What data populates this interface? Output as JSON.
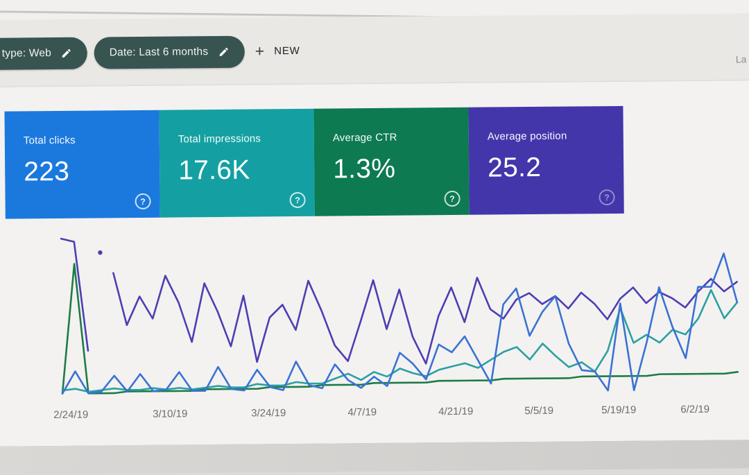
{
  "header": {
    "chips": [
      {
        "label": "type: Web",
        "icon": "pencil-icon"
      },
      {
        "label": "Date: Last 6 months",
        "icon": "pencil-icon"
      }
    ],
    "new_button": {
      "plus": "+",
      "label": "NEW"
    },
    "right_partial_text": "La"
  },
  "metric_cards": [
    {
      "label": "Total clicks",
      "value": "223",
      "color": "#1b79de",
      "help": "?"
    },
    {
      "label": "Total impressions",
      "value": "17.6K",
      "color": "#14a0a2",
      "help": "?"
    },
    {
      "label": "Average CTR",
      "value": "1.3%",
      "color": "#0d7a52",
      "help": "?"
    },
    {
      "label": "Average position",
      "value": "25.2",
      "color": "#4336ab",
      "help": "?"
    }
  ],
  "chart_data": {
    "type": "line",
    "title": "",
    "x_tick_labels": [
      "2/24/19",
      "3/10/19",
      "3/24/19",
      "4/7/19",
      "4/21/19",
      "5/5/19",
      "5/19/19",
      "6/2/19"
    ],
    "x_tick_indices": [
      0,
      7,
      14,
      21,
      28,
      35,
      42,
      49
    ],
    "x_points": 53,
    "x_range_days": 105,
    "y_unit": "relative_height_pct (no y-axis rendered in UI)",
    "grid": "off",
    "legend_position": "none",
    "series": [
      {
        "name": "Position",
        "color": "#1e7b46",
        "values_pct": [
          1,
          83,
          1,
          1,
          1,
          2,
          2,
          2,
          2,
          2,
          2,
          3,
          3,
          3,
          3,
          3,
          4,
          4,
          4,
          4,
          5,
          5,
          5,
          5,
          6,
          6,
          6,
          6,
          6,
          7,
          7,
          7,
          7,
          7,
          8,
          8,
          8,
          8,
          8,
          8,
          9,
          9,
          9,
          9,
          9,
          9,
          10,
          10,
          10,
          10,
          10,
          10,
          11
        ]
      },
      {
        "name": "CTR",
        "color": "#2aa0a4",
        "values_pct": [
          3,
          4,
          2,
          3,
          4,
          3,
          3,
          4,
          3,
          4,
          3,
          4,
          5,
          4,
          4,
          6,
          5,
          5,
          7,
          6,
          6,
          9,
          12,
          8,
          13,
          10,
          15,
          12,
          10,
          14,
          16,
          18,
          15,
          20,
          25,
          28,
          20,
          30,
          22,
          15,
          18,
          12,
          25,
          52,
          30,
          35,
          30,
          38,
          35,
          45,
          63,
          45,
          55
        ]
      },
      {
        "name": "Impressions",
        "color": "#4c3eb3",
        "values_pct": [
          99,
          97,
          28,
          null,
          77,
          44,
          62,
          48,
          75,
          58,
          33,
          70,
          52,
          30,
          62,
          20,
          48,
          56,
          40,
          71,
          52,
          30,
          20,
          45,
          71,
          40,
          65,
          35,
          18,
          48,
          66,
          44,
          72,
          52,
          46,
          58,
          62,
          55,
          60,
          52,
          62,
          55,
          45,
          58,
          65,
          55,
          62,
          58,
          52,
          62,
          70,
          62,
          68
        ],
        "isolated_point": {
          "index": 3,
          "value_pct": 90
        }
      },
      {
        "name": "Clicks",
        "color": "#3a72d4",
        "values_pct": [
          1,
          15,
          1,
          2,
          12,
          2,
          13,
          2,
          3,
          14,
          2,
          2,
          17,
          3,
          2,
          15,
          4,
          2,
          20,
          5,
          3,
          18,
          8,
          3,
          10,
          4,
          25,
          18,
          8,
          30,
          25,
          35,
          20,
          5,
          55,
          65,
          35,
          50,
          60,
          30,
          13,
          12,
          0,
          55,
          0,
          30,
          65,
          40,
          20,
          65,
          65,
          86,
          55
        ]
      }
    ]
  },
  "colors": {
    "page_bg": "#dddbd8",
    "top_strip": "#f2f0ee",
    "chip_bar_bg": "#eae8e5",
    "chip_bg": "#375451",
    "content_bg": "#f3f2f0",
    "tick_label": "#6d6b68"
  }
}
